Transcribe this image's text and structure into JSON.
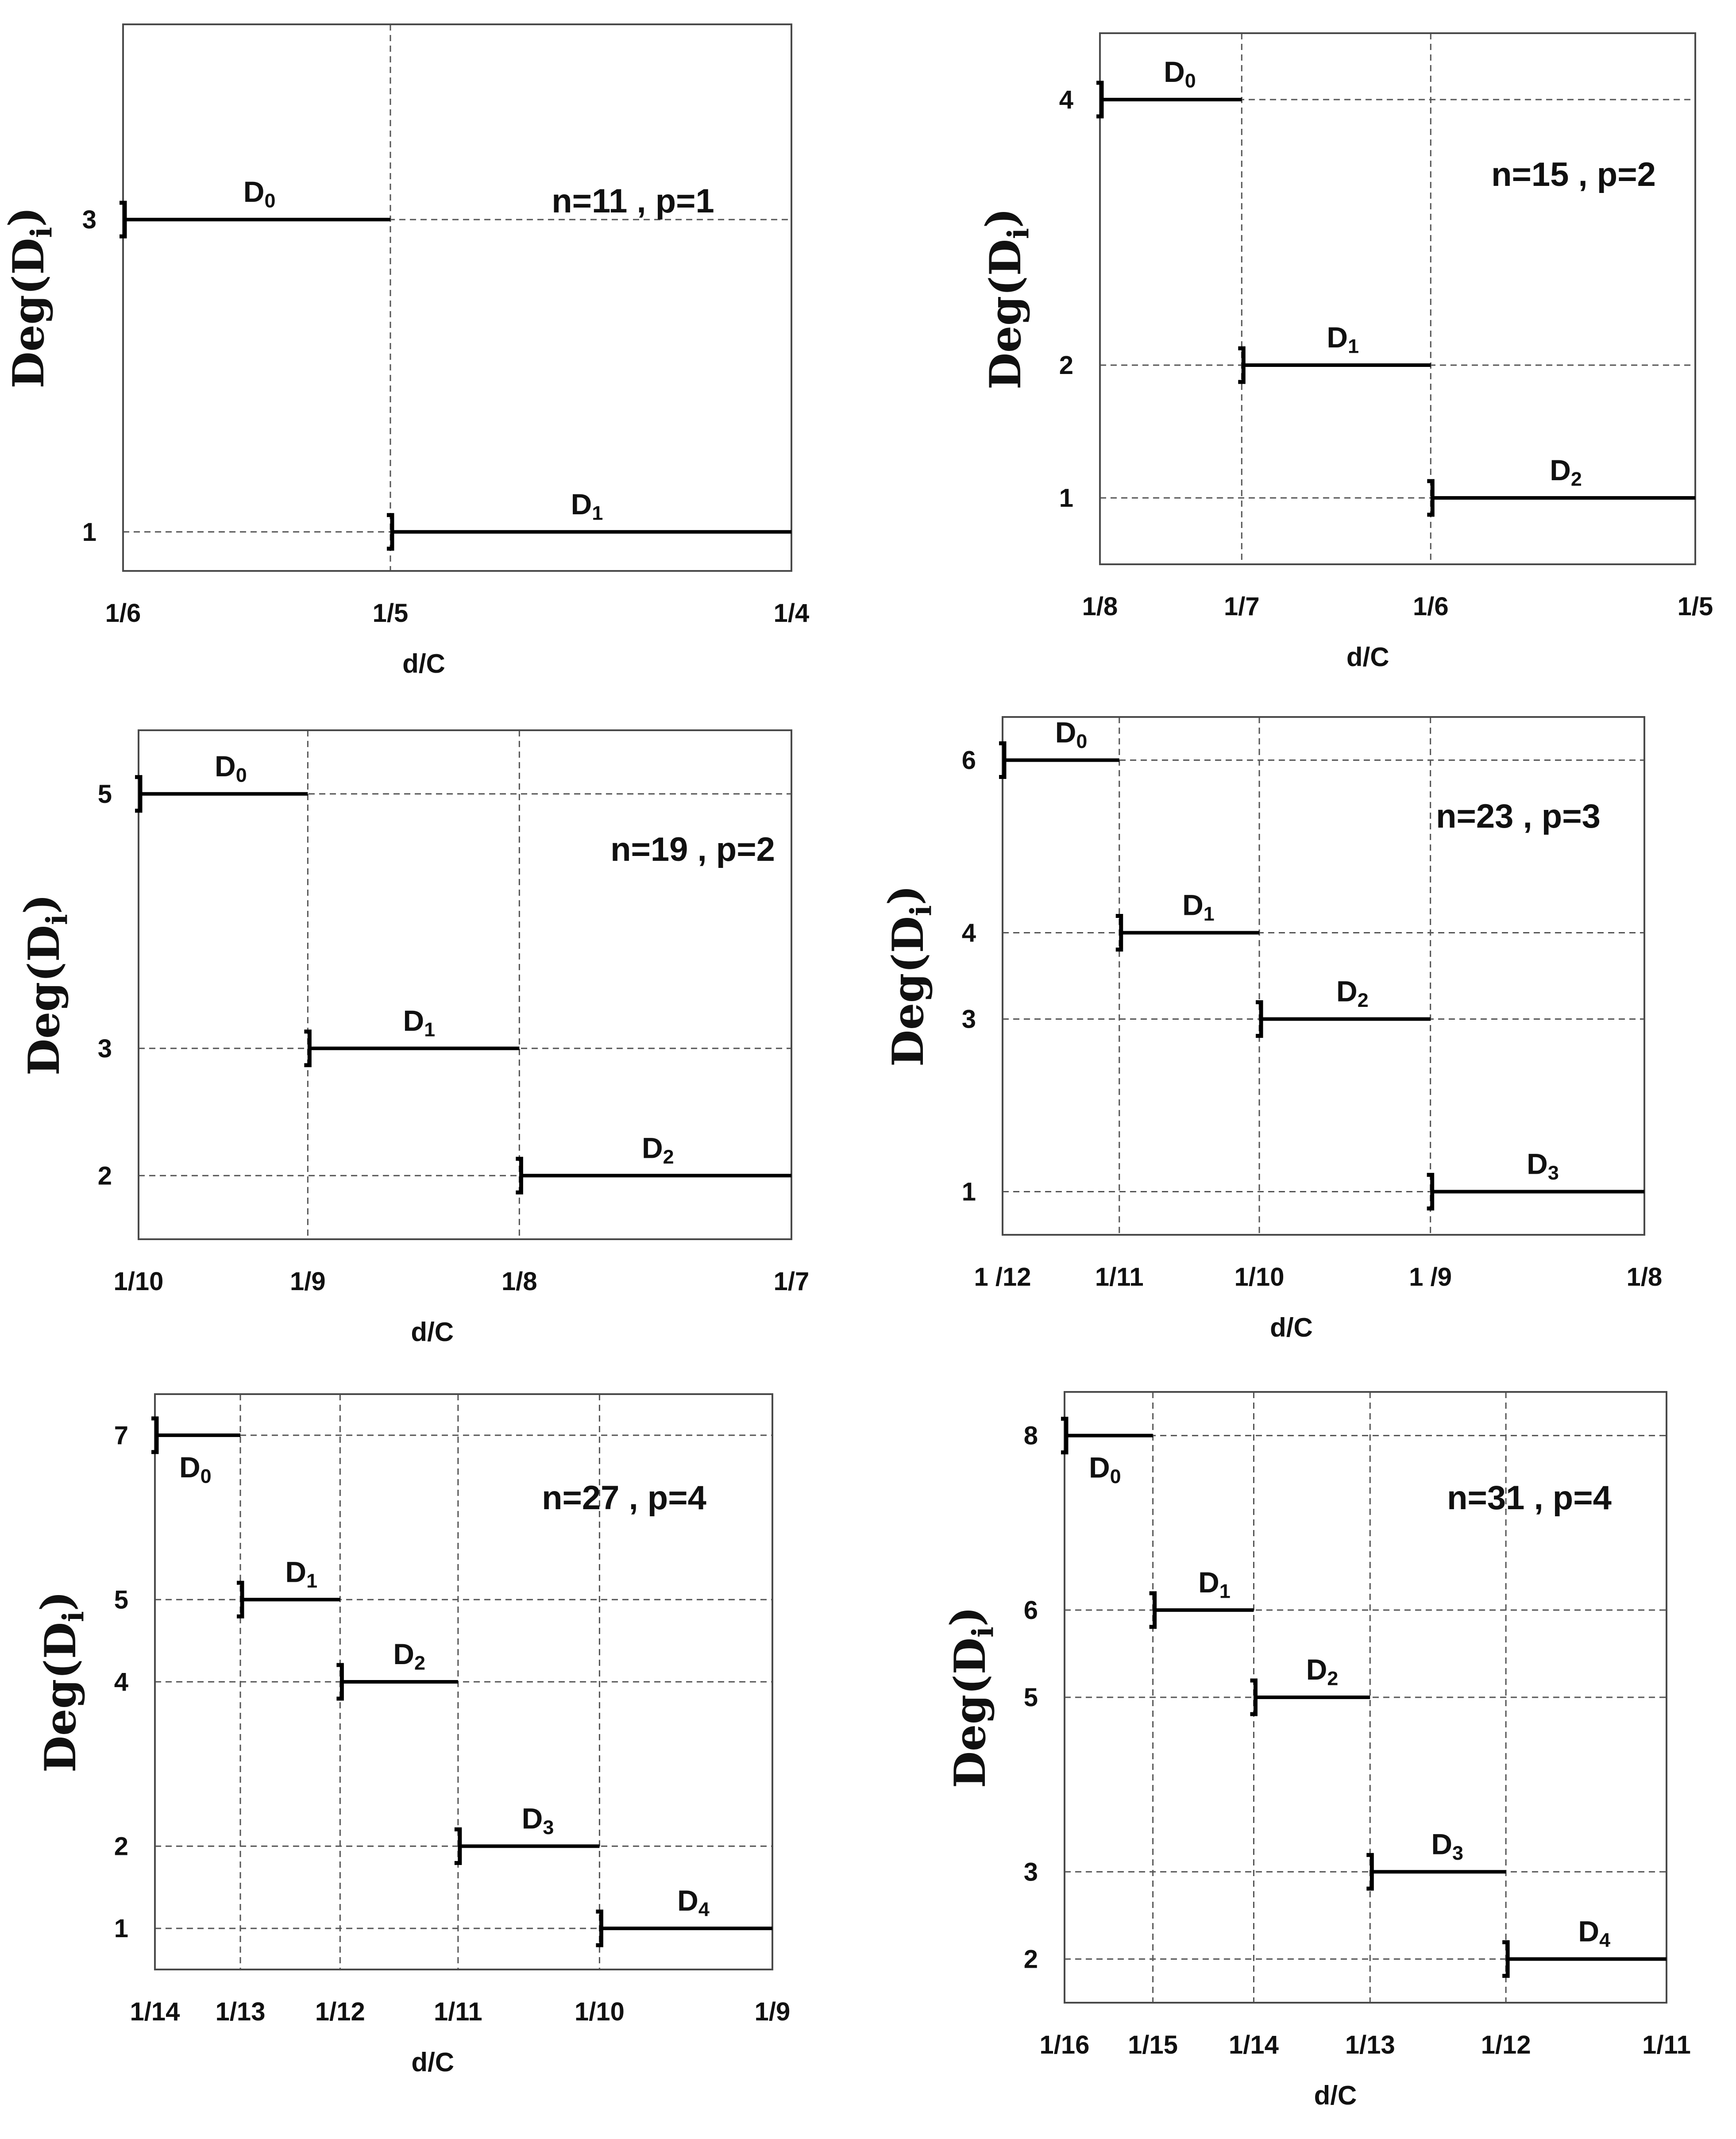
{
  "chart_data": [
    {
      "type": "step",
      "annotation": "n=11 , p=1",
      "xlabel": "d/C",
      "ylabel": {
        "base": "Deg(D",
        "sub": "i",
        "close": ")"
      },
      "x_ticks": [
        {
          "value": 0.16667,
          "label": "1/6"
        },
        {
          "value": 0.2,
          "label": "1/5"
        },
        {
          "value": 0.25,
          "label": "1/4"
        }
      ],
      "y_ticks": [
        {
          "value": 1,
          "label": "1"
        },
        {
          "value": 3,
          "label": "3"
        }
      ],
      "xlim": [
        0.16667,
        0.25
      ],
      "ylim": [
        0.75,
        4.25
      ],
      "grid": "dashed",
      "segments": [
        {
          "name": {
            "base": "D",
            "sub": "0"
          },
          "x_start": 0.16667,
          "x_end": 0.2,
          "y": 3
        },
        {
          "name": {
            "base": "D",
            "sub": "1"
          },
          "x_start": 0.2,
          "x_end": 0.25,
          "y": 1
        }
      ]
    },
    {
      "type": "step",
      "annotation": "n=15 , p=2",
      "xlabel": "d/C",
      "ylabel": {
        "base": "Deg(D",
        "sub": "i",
        "close": ")"
      },
      "x_ticks": [
        {
          "value": 0.125,
          "label": "1/8"
        },
        {
          "value": 0.14286,
          "label": "1/7"
        },
        {
          "value": 0.16667,
          "label": "1/6"
        },
        {
          "value": 0.2,
          "label": "1/5"
        }
      ],
      "y_ticks": [
        {
          "value": 1,
          "label": "1"
        },
        {
          "value": 2,
          "label": "2"
        },
        {
          "value": 4,
          "label": "4"
        }
      ],
      "xlim": [
        0.125,
        0.2
      ],
      "ylim": [
        0.5,
        4.5
      ],
      "grid": "dashed",
      "segments": [
        {
          "name": {
            "base": "D",
            "sub": "0"
          },
          "x_start": 0.125,
          "x_end": 0.14286,
          "y": 4
        },
        {
          "name": {
            "base": "D",
            "sub": "1"
          },
          "x_start": 0.14286,
          "x_end": 0.16667,
          "y": 2
        },
        {
          "name": {
            "base": "D",
            "sub": "2"
          },
          "x_start": 0.16667,
          "x_end": 0.2,
          "y": 1
        }
      ]
    },
    {
      "type": "step",
      "annotation": "n=19 , p=2",
      "xlabel": "d/C",
      "ylabel": {
        "base": "Deg(D",
        "sub": "i",
        "close": ")"
      },
      "x_ticks": [
        {
          "value": 0.1,
          "label": "1/10"
        },
        {
          "value": 0.11111,
          "label": "1/9"
        },
        {
          "value": 0.125,
          "label": "1/8"
        },
        {
          "value": 0.14286,
          "label": "1/7"
        }
      ],
      "y_ticks": [
        {
          "value": 2,
          "label": "2"
        },
        {
          "value": 3,
          "label": "3"
        },
        {
          "value": 5,
          "label": "5"
        }
      ],
      "xlim": [
        0.1,
        0.14286
      ],
      "ylim": [
        1.5,
        5.5
      ],
      "grid": "dashed",
      "segments": [
        {
          "name": {
            "base": "D",
            "sub": "0"
          },
          "x_start": 0.1,
          "x_end": 0.11111,
          "y": 5
        },
        {
          "name": {
            "base": "D",
            "sub": "1"
          },
          "x_start": 0.11111,
          "x_end": 0.125,
          "y": 3
        },
        {
          "name": {
            "base": "D",
            "sub": "2"
          },
          "x_start": 0.125,
          "x_end": 0.14286,
          "y": 2
        }
      ]
    },
    {
      "type": "step",
      "annotation": "n=23 , p=3",
      "xlabel": "d/C",
      "ylabel": {
        "base": "Deg(D",
        "sub": "i",
        "close": ")"
      },
      "x_ticks": [
        {
          "value": 0.08333,
          "label": "1 /12"
        },
        {
          "value": 0.09091,
          "label": "1/11"
        },
        {
          "value": 0.1,
          "label": "1/10"
        },
        {
          "value": 0.11111,
          "label": "1 /9"
        },
        {
          "value": 0.125,
          "label": "1/8"
        }
      ],
      "y_ticks": [
        {
          "value": 1,
          "label": "1"
        },
        {
          "value": 3,
          "label": "3"
        },
        {
          "value": 4,
          "label": "4"
        },
        {
          "value": 6,
          "label": "6"
        }
      ],
      "xlim": [
        0.08333,
        0.125
      ],
      "ylim": [
        0.5,
        6.5
      ],
      "grid": "dashed",
      "segments": [
        {
          "name": {
            "base": "D",
            "sub": "0"
          },
          "x_start": 0.08333,
          "x_end": 0.09091,
          "y": 6
        },
        {
          "name": {
            "base": "D",
            "sub": "1"
          },
          "x_start": 0.09091,
          "x_end": 0.1,
          "y": 4
        },
        {
          "name": {
            "base": "D",
            "sub": "2"
          },
          "x_start": 0.1,
          "x_end": 0.11111,
          "y": 3
        },
        {
          "name": {
            "base": "D",
            "sub": "3"
          },
          "x_start": 0.11111,
          "x_end": 0.125,
          "y": 1
        }
      ]
    },
    {
      "type": "step",
      "annotation": "n=27 , p=4",
      "xlabel": "d/C",
      "ylabel": {
        "base": "Deg(D",
        "sub": "i",
        "close": ")"
      },
      "x_ticks": [
        {
          "value": 0.07143,
          "label": "1/14"
        },
        {
          "value": 0.07692,
          "label": "1/13"
        },
        {
          "value": 0.08333,
          "label": "1/12"
        },
        {
          "value": 0.09091,
          "label": "1/11"
        },
        {
          "value": 0.1,
          "label": "1/10"
        },
        {
          "value": 0.11111,
          "label": "1/9"
        }
      ],
      "y_ticks": [
        {
          "value": 1,
          "label": "1"
        },
        {
          "value": 2,
          "label": "2"
        },
        {
          "value": 4,
          "label": "4"
        },
        {
          "value": 5,
          "label": "5"
        },
        {
          "value": 7,
          "label": "7"
        }
      ],
      "xlim": [
        0.07143,
        0.11111
      ],
      "ylim": [
        0.5,
        7.5
      ],
      "grid": "dashed",
      "segments": [
        {
          "name": {
            "base": "D",
            "sub": "0"
          },
          "x_start": 0.07143,
          "x_end": 0.07692,
          "y": 7
        },
        {
          "name": {
            "base": "D",
            "sub": "1"
          },
          "x_start": 0.07692,
          "x_end": 0.08333,
          "y": 5
        },
        {
          "name": {
            "base": "D",
            "sub": "2"
          },
          "x_start": 0.08333,
          "x_end": 0.09091,
          "y": 4
        },
        {
          "name": {
            "base": "D",
            "sub": "3"
          },
          "x_start": 0.09091,
          "x_end": 0.1,
          "y": 2
        },
        {
          "name": {
            "base": "D",
            "sub": "4"
          },
          "x_start": 0.1,
          "x_end": 0.11111,
          "y": 1
        }
      ]
    },
    {
      "type": "step",
      "annotation": "n=31 , p=4",
      "xlabel": "d/C",
      "ylabel": {
        "base": "Deg(D",
        "sub": "i",
        "close": ")"
      },
      "x_ticks": [
        {
          "value": 0.0625,
          "label": "1/16"
        },
        {
          "value": 0.06667,
          "label": "1/15"
        },
        {
          "value": 0.07143,
          "label": "1/14"
        },
        {
          "value": 0.07692,
          "label": "1/13"
        },
        {
          "value": 0.08333,
          "label": "1/12"
        },
        {
          "value": 0.09091,
          "label": "1/11"
        }
      ],
      "y_ticks": [
        {
          "value": 2,
          "label": "2"
        },
        {
          "value": 3,
          "label": "3"
        },
        {
          "value": 5,
          "label": "5"
        },
        {
          "value": 6,
          "label": "6"
        },
        {
          "value": 8,
          "label": "8"
        }
      ],
      "xlim": [
        0.0625,
        0.09091
      ],
      "ylim": [
        1.5,
        8.5
      ],
      "grid": "dashed",
      "segments": [
        {
          "name": {
            "base": "D",
            "sub": "0"
          },
          "x_start": 0.0625,
          "x_end": 0.06667,
          "y": 8
        },
        {
          "name": {
            "base": "D",
            "sub": "1"
          },
          "x_start": 0.06667,
          "x_end": 0.07143,
          "y": 6
        },
        {
          "name": {
            "base": "D",
            "sub": "2"
          },
          "x_start": 0.07143,
          "x_end": 0.07692,
          "y": 5
        },
        {
          "name": {
            "base": "D",
            "sub": "3"
          },
          "x_start": 0.07692,
          "x_end": 0.08333,
          "y": 3
        },
        {
          "name": {
            "base": "D",
            "sub": "4"
          },
          "x_start": 0.08333,
          "x_end": 0.09091,
          "y": 2
        }
      ]
    }
  ]
}
